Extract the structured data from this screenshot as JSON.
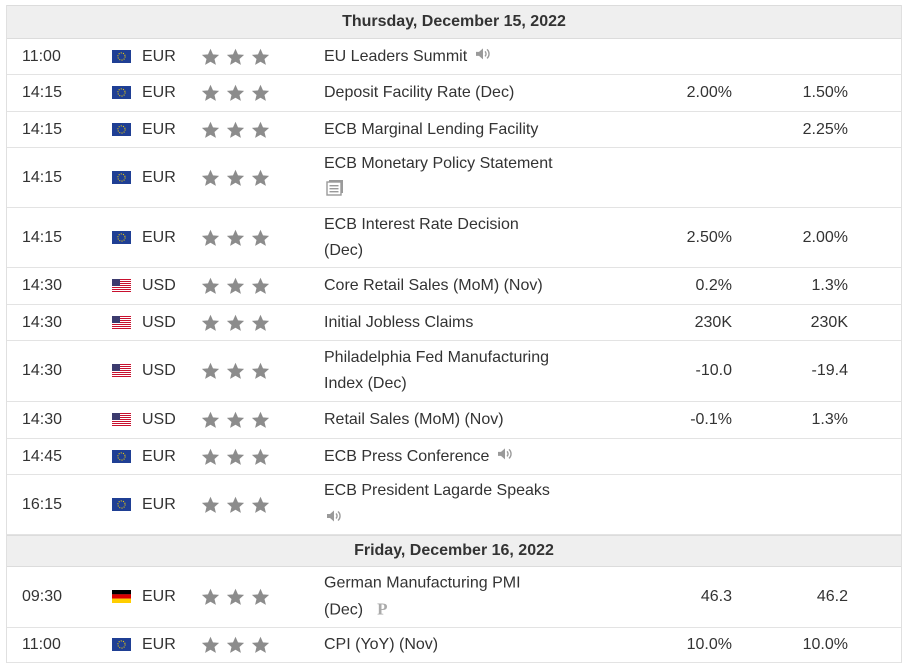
{
  "days": [
    {
      "label": "Thursday, December 15, 2022",
      "events": [
        {
          "time": "11:00",
          "flag": "eu",
          "currency": "EUR",
          "lines": [
            "EU Leaders Summit"
          ],
          "icon": "speaker-icon",
          "icon_newline": false,
          "actual": "",
          "forecast": ""
        },
        {
          "time": "14:15",
          "flag": "eu",
          "currency": "EUR",
          "lines": [
            "Deposit Facility Rate (Dec)"
          ],
          "icon": "",
          "icon_newline": false,
          "actual": "2.00%",
          "forecast": "1.50%"
        },
        {
          "time": "14:15",
          "flag": "eu",
          "currency": "EUR",
          "lines": [
            "ECB Marginal Lending Facility"
          ],
          "icon": "",
          "icon_newline": false,
          "actual": "",
          "forecast": "2.25%"
        },
        {
          "time": "14:15",
          "flag": "eu",
          "currency": "EUR",
          "lines": [
            "ECB Monetary Policy Statement"
          ],
          "icon": "document-icon",
          "icon_newline": true,
          "actual": "",
          "forecast": ""
        },
        {
          "time": "14:15",
          "flag": "eu",
          "currency": "EUR",
          "lines": [
            "ECB Interest Rate Decision",
            "(Dec)"
          ],
          "icon": "",
          "icon_newline": false,
          "actual": "2.50%",
          "forecast": "2.00%"
        },
        {
          "time": "14:30",
          "flag": "us",
          "currency": "USD",
          "lines": [
            "Core Retail Sales (MoM) (Nov)"
          ],
          "icon": "",
          "icon_newline": false,
          "actual": "0.2%",
          "forecast": "1.3%"
        },
        {
          "time": "14:30",
          "flag": "us",
          "currency": "USD",
          "lines": [
            "Initial Jobless Claims"
          ],
          "icon": "",
          "icon_newline": false,
          "actual": "230K",
          "forecast": "230K"
        },
        {
          "time": "14:30",
          "flag": "us",
          "currency": "USD",
          "lines": [
            "Philadelphia Fed Manufacturing",
            "Index (Dec)"
          ],
          "icon": "",
          "icon_newline": false,
          "actual": "-10.0",
          "forecast": "-19.4"
        },
        {
          "time": "14:30",
          "flag": "us",
          "currency": "USD",
          "lines": [
            "Retail Sales (MoM) (Nov)"
          ],
          "icon": "",
          "icon_newline": false,
          "actual": "-0.1%",
          "forecast": "1.3%"
        },
        {
          "time": "14:45",
          "flag": "eu",
          "currency": "EUR",
          "lines": [
            "ECB Press Conference"
          ],
          "icon": "speaker-icon",
          "icon_newline": false,
          "actual": "",
          "forecast": ""
        },
        {
          "time": "16:15",
          "flag": "eu",
          "currency": "EUR",
          "lines": [
            "ECB President Lagarde Speaks"
          ],
          "icon": "speaker-icon",
          "icon_newline": true,
          "actual": "",
          "forecast": ""
        }
      ]
    },
    {
      "label": "Friday, December 16, 2022",
      "events": [
        {
          "time": "09:30",
          "flag": "de",
          "currency": "EUR",
          "lines": [
            "German Manufacturing PMI",
            "(Dec)"
          ],
          "icon": "preliminary-icon",
          "icon_newline": false,
          "actual": "46.3",
          "forecast": "46.2"
        },
        {
          "time": "11:00",
          "flag": "eu",
          "currency": "EUR",
          "lines": [
            "CPI (YoY) (Nov)"
          ],
          "icon": "",
          "icon_newline": false,
          "actual": "10.0%",
          "forecast": "10.0%"
        }
      ]
    }
  ],
  "importance_stars": 3,
  "preliminary_mark": "P",
  "colors": {
    "star": "#8c8c8c",
    "header_bg": "#efefef",
    "eu_blue": "#1f3f94",
    "icon_gray": "#9a9a9a"
  }
}
